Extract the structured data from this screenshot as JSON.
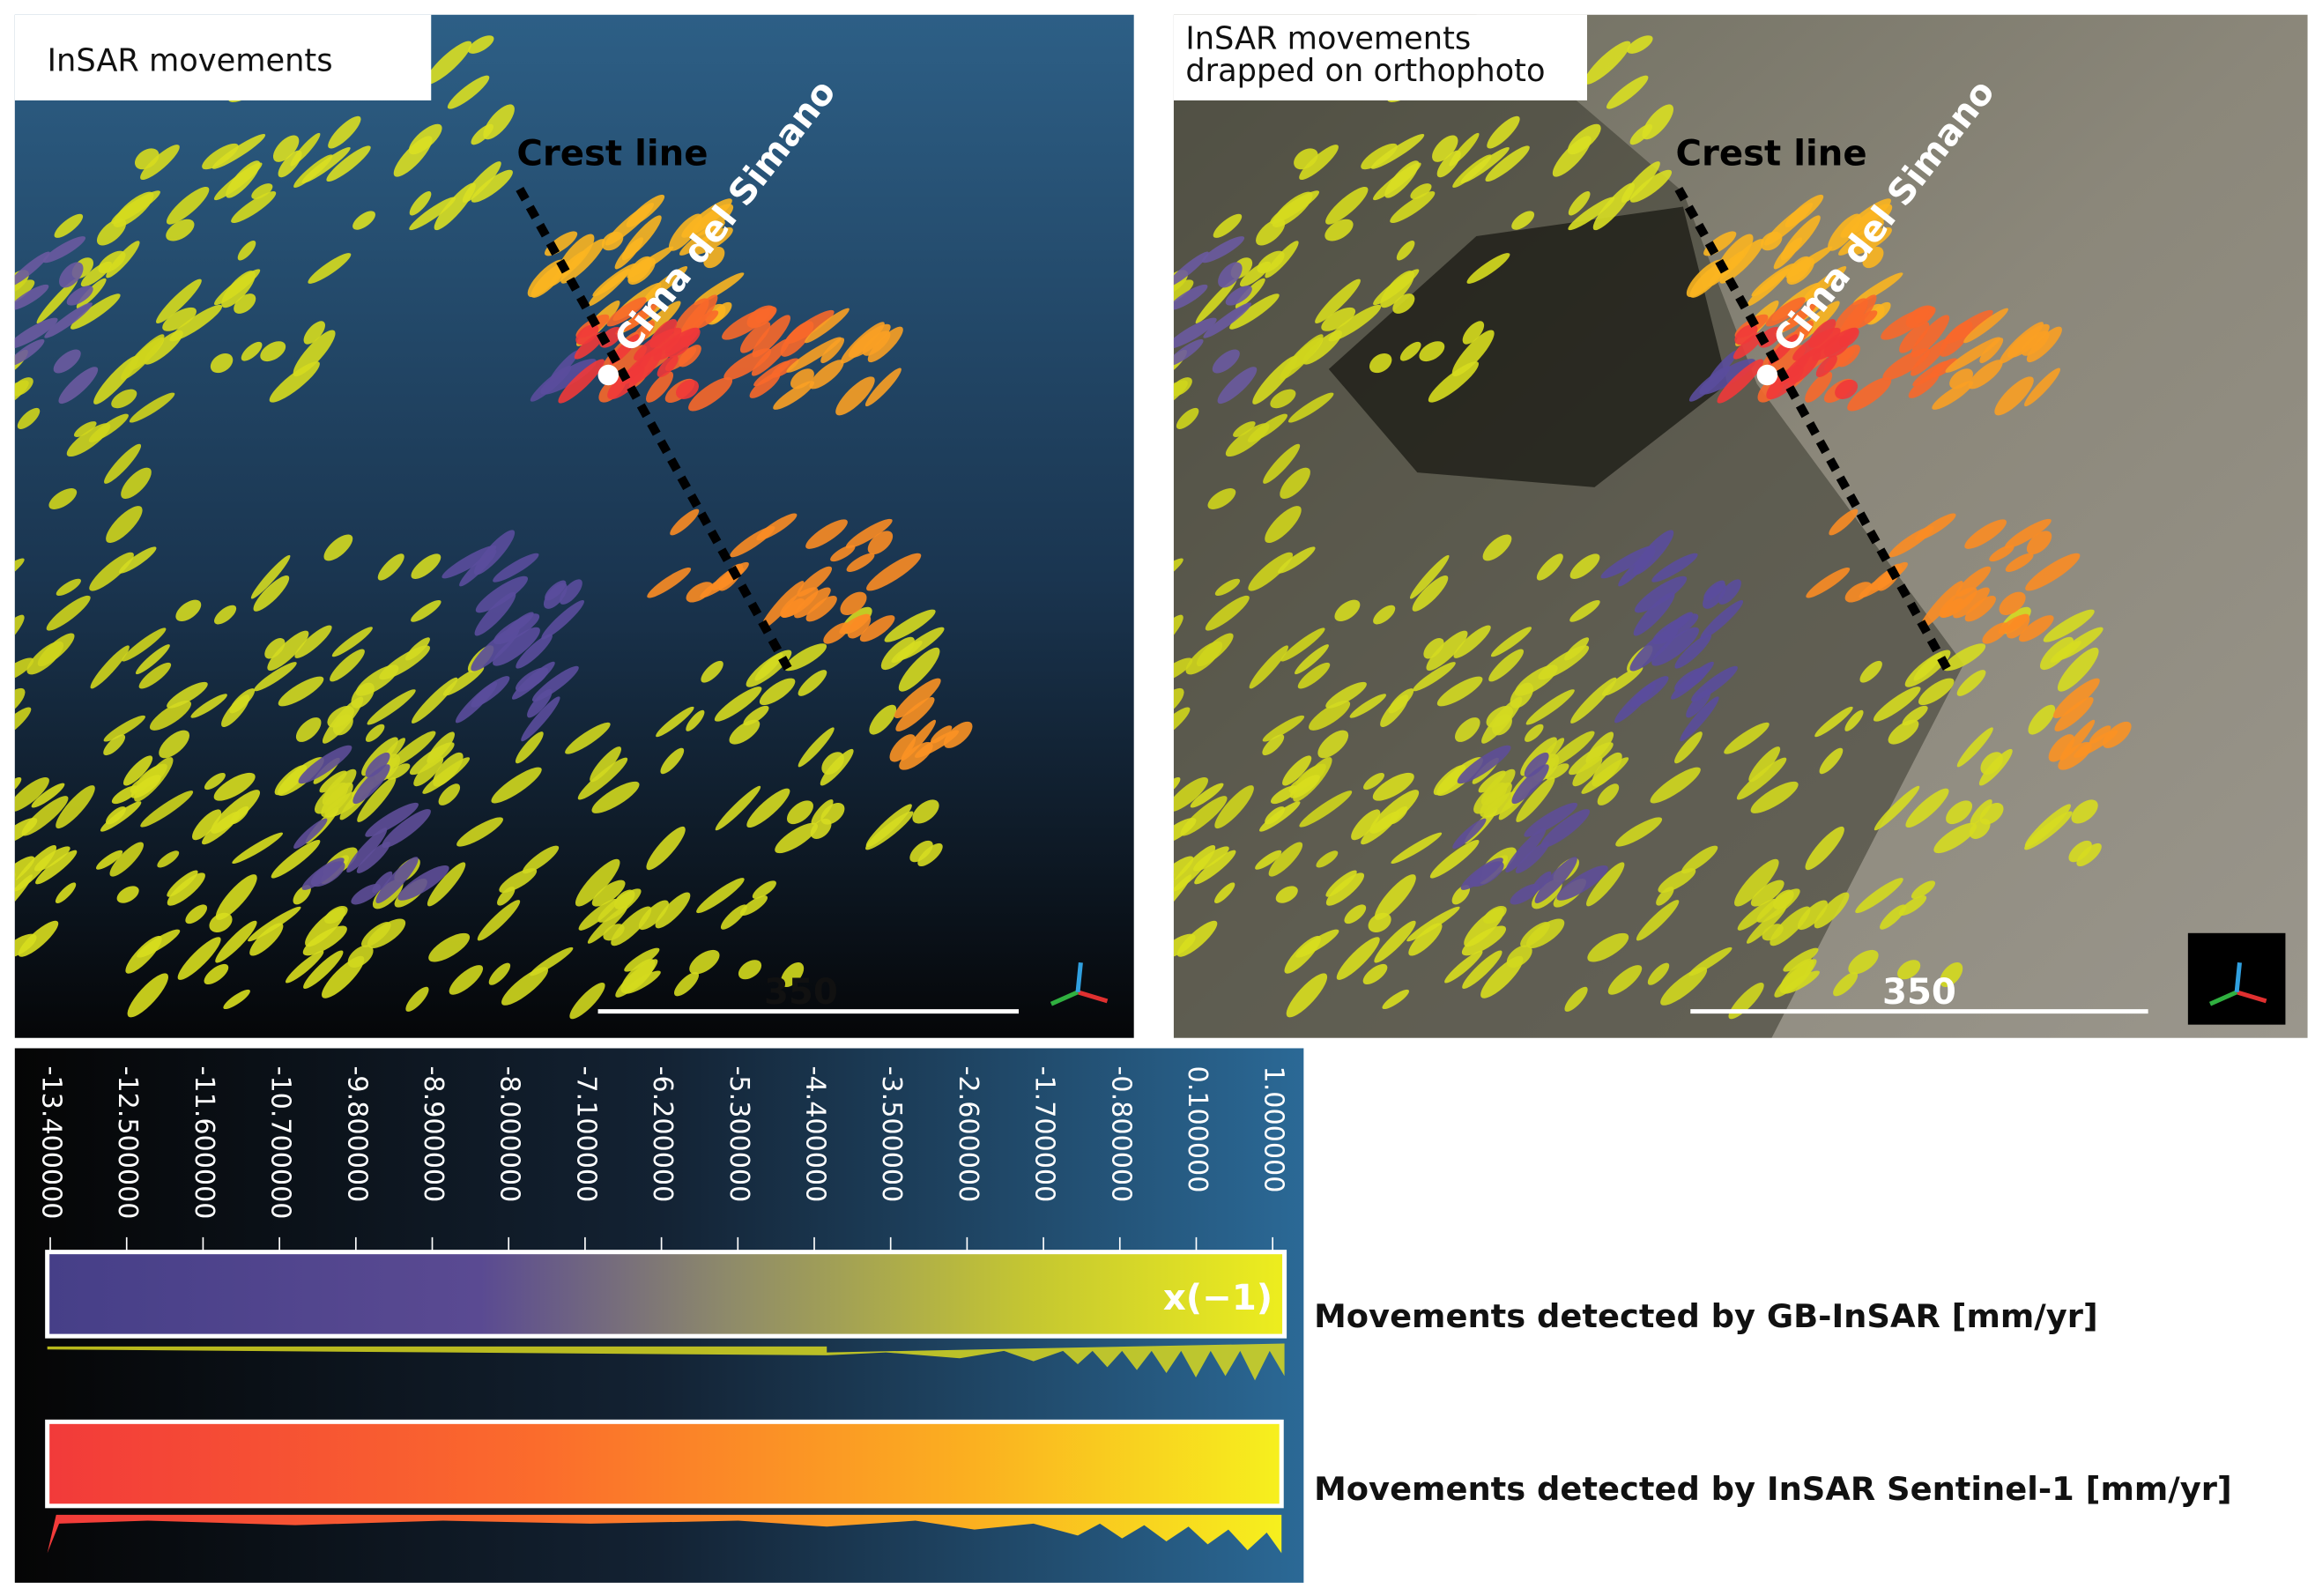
{
  "panels": [
    {
      "title_lines": [
        "InSAR movements"
      ],
      "crest_label": "Crest line",
      "peak_label": "Cima del Simano",
      "scale_label": "350"
    },
    {
      "title_lines": [
        "InSAR movements",
        "drapped on orthophoto"
      ],
      "crest_label": "Crest line",
      "peak_label": "Cima del Simano",
      "scale_label": "350"
    }
  ],
  "colorbar": {
    "ticks": [
      "-13.400000",
      "-12.500000",
      "-11.600000",
      "-10.700000",
      "-9.800000",
      "-8.900000",
      "-8.000000",
      "-7.100000",
      "-6.200000",
      "-5.300000",
      "-4.400000",
      "-3.500000",
      "-2.600000",
      "-1.700000",
      "-0.800000",
      "0.100000",
      "1.000000"
    ],
    "factor_label": "x(−1)",
    "gb_label": "Movements detected by GB-InSAR [mm/yr]",
    "sentinel_label": "Movements detected by InSAR Sentinel-1 [mm/yr]"
  }
}
